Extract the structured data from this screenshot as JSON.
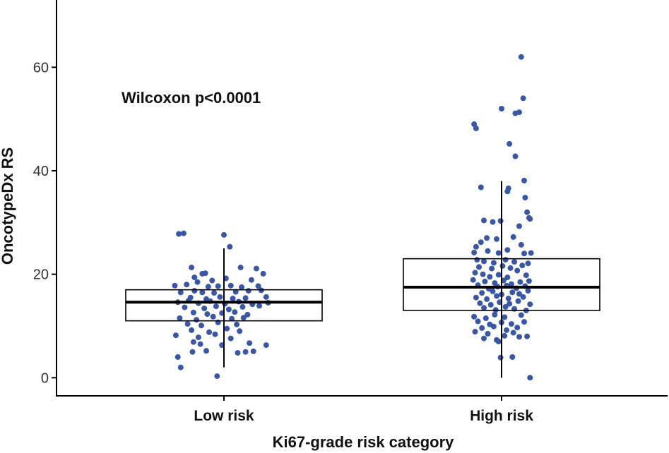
{
  "chart_data": {
    "type": "box",
    "title": "",
    "xlabel": "Ki67-grade risk category",
    "ylabel": "OncotypeDx RS",
    "ylim": [
      -3.5,
      73
    ],
    "yticks": [
      0,
      20,
      40,
      60
    ],
    "grid": false,
    "annotation": "Wilcoxon  p<0.0001",
    "point_color": "#3a57a6",
    "categories": [
      "Low risk",
      "High risk"
    ],
    "boxes": [
      {
        "name": "Low risk",
        "q1": 11,
        "median": 14.6,
        "q3": 17,
        "whisker_low": 2,
        "whisker_high": 25,
        "points": [
          [
            -0.46,
            27.8
          ],
          [
            -0.41,
            27.9
          ],
          [
            0.0,
            27.6
          ],
          [
            0.06,
            25.3
          ],
          [
            -0.22,
            20.1
          ],
          [
            -0.19,
            20.2
          ],
          [
            -0.33,
            21.3
          ],
          [
            -0.3,
            19.4
          ],
          [
            0.4,
            20.1
          ],
          [
            0.33,
            21.1
          ],
          [
            0.17,
            21.3
          ],
          [
            -0.38,
            18.0
          ],
          [
            -0.27,
            18.5
          ],
          [
            -0.12,
            18.8
          ],
          [
            0.02,
            19.2
          ],
          [
            0.28,
            18.9
          ],
          [
            -0.5,
            17.8
          ],
          [
            -0.16,
            17.6
          ],
          [
            -0.06,
            17.7
          ],
          [
            0.07,
            17.8
          ],
          [
            0.18,
            17.5
          ],
          [
            0.35,
            17.7
          ],
          [
            -0.44,
            16.5
          ],
          [
            -0.3,
            16.8
          ],
          [
            -0.22,
            16.5
          ],
          [
            -0.1,
            16.4
          ],
          [
            0.12,
            16.6
          ],
          [
            0.25,
            16.8
          ],
          [
            0.38,
            16.9
          ],
          [
            -0.34,
            15.5
          ],
          [
            -0.18,
            15.2
          ],
          [
            -0.04,
            15.6
          ],
          [
            0.09,
            15.3
          ],
          [
            0.22,
            15.4
          ],
          [
            0.43,
            15.6
          ],
          [
            -0.47,
            14.6
          ],
          [
            -0.36,
            14.9
          ],
          [
            -0.26,
            14.4
          ],
          [
            -0.14,
            14.8
          ],
          [
            0.01,
            14.3
          ],
          [
            0.15,
            14.7
          ],
          [
            0.29,
            14.2
          ],
          [
            0.45,
            14.5
          ],
          [
            -0.4,
            13.6
          ],
          [
            -0.2,
            13.4
          ],
          [
            -0.08,
            13.8
          ],
          [
            0.05,
            13.2
          ],
          [
            0.19,
            13.7
          ],
          [
            0.36,
            13.9
          ],
          [
            -0.31,
            12.6
          ],
          [
            -0.17,
            12.3
          ],
          [
            -0.02,
            12.5
          ],
          [
            0.11,
            12.7
          ],
          [
            0.24,
            12.2
          ],
          [
            -0.45,
            11.5
          ],
          [
            -0.28,
            11.2
          ],
          [
            -0.11,
            11.8
          ],
          [
            0.08,
            11.4
          ],
          [
            0.2,
            11.6
          ],
          [
            -0.37,
            10.4
          ],
          [
            -0.23,
            10.1
          ],
          [
            -0.06,
            10.7
          ],
          [
            0.13,
            10.3
          ],
          [
            -0.33,
            9.2
          ],
          [
            -0.15,
            8.8
          ],
          [
            0.03,
            9.5
          ],
          [
            0.16,
            9.0
          ],
          [
            -0.49,
            8.2
          ],
          [
            -0.26,
            7.8
          ],
          [
            -0.09,
            8.4
          ],
          [
            0.07,
            7.6
          ],
          [
            -0.31,
            6.9
          ],
          [
            -0.02,
            6.3
          ],
          [
            0.26,
            6.7
          ],
          [
            0.43,
            6.3
          ],
          [
            -0.18,
            5.2
          ],
          [
            0.22,
            5.0
          ],
          [
            0.14,
            4.8
          ],
          [
            -0.32,
            5.0
          ],
          [
            -0.47,
            4.0
          ],
          [
            -0.44,
            2.0
          ],
          [
            -0.07,
            0.3
          ],
          [
            -0.24,
            6.5
          ],
          [
            0.3,
            5.1
          ]
        ]
      },
      {
        "name": "High risk",
        "q1": 13,
        "median": 17.5,
        "q3": 23,
        "whisker_low": 0,
        "whisker_high": 38,
        "points": [
          [
            0.2,
            62.0
          ],
          [
            0.22,
            54.0
          ],
          [
            0.0,
            52.0
          ],
          [
            0.18,
            51.3
          ],
          [
            0.14,
            51.1
          ],
          [
            -0.28,
            49.0
          ],
          [
            -0.26,
            48.2
          ],
          [
            0.08,
            45.2
          ],
          [
            0.14,
            42.8
          ],
          [
            0.23,
            38.1
          ],
          [
            -0.21,
            36.8
          ],
          [
            0.07,
            36.6
          ],
          [
            0.24,
            34.8
          ],
          [
            0.26,
            32.0
          ],
          [
            0.28,
            30.9
          ],
          [
            -0.09,
            30.1
          ],
          [
            -0.18,
            30.4
          ],
          [
            -0.01,
            30.3
          ],
          [
            0.18,
            29.3
          ],
          [
            0.29,
            30.7
          ],
          [
            -0.15,
            27.0
          ],
          [
            0.12,
            27.2
          ],
          [
            -0.05,
            26.8
          ],
          [
            -0.26,
            25.3
          ],
          [
            0.2,
            25.7
          ],
          [
            -0.28,
            24.2
          ],
          [
            -0.14,
            24.5
          ],
          [
            -0.03,
            24.1
          ],
          [
            0.06,
            24.7
          ],
          [
            0.23,
            24.0
          ],
          [
            0.3,
            24.1
          ],
          [
            -0.25,
            22.8
          ],
          [
            -0.18,
            22.5
          ],
          [
            -0.08,
            22.2
          ],
          [
            0.04,
            22.8
          ],
          [
            0.13,
            22.4
          ],
          [
            0.27,
            22.1
          ],
          [
            -0.23,
            21.4
          ],
          [
            -0.1,
            21.1
          ],
          [
            0.01,
            21.6
          ],
          [
            0.09,
            21.2
          ],
          [
            0.21,
            21.7
          ],
          [
            -0.27,
            20.3
          ],
          [
            -0.19,
            20.0
          ],
          [
            -0.12,
            19.5
          ],
          [
            -0.03,
            19.9
          ],
          [
            0.06,
            19.4
          ],
          [
            0.16,
            20.7
          ],
          [
            0.25,
            19.8
          ],
          [
            -0.29,
            18.9
          ],
          [
            -0.17,
            18.6
          ],
          [
            -0.07,
            18.3
          ],
          [
            0.02,
            18.8
          ],
          [
            0.1,
            18.1
          ],
          [
            0.19,
            18.5
          ],
          [
            0.28,
            18.7
          ],
          [
            -0.24,
            17.9
          ],
          [
            -0.13,
            17.2
          ],
          [
            -0.04,
            17.6
          ],
          [
            0.05,
            17.8
          ],
          [
            0.15,
            17.3
          ],
          [
            0.24,
            17.7
          ],
          [
            -0.2,
            16.4
          ],
          [
            -0.09,
            16.7
          ],
          [
            0.0,
            16.1
          ],
          [
            0.11,
            16.5
          ],
          [
            0.18,
            16.2
          ],
          [
            0.27,
            16.8
          ],
          [
            -0.26,
            15.5
          ],
          [
            -0.15,
            15.2
          ],
          [
            -0.05,
            15.8
          ],
          [
            0.07,
            15.3
          ],
          [
            0.22,
            15.6
          ],
          [
            -0.22,
            14.4
          ],
          [
            -0.11,
            14.1
          ],
          [
            -0.02,
            14.6
          ],
          [
            0.08,
            14.3
          ],
          [
            0.17,
            14.8
          ],
          [
            0.29,
            14.2
          ],
          [
            -0.18,
            13.5
          ],
          [
            -0.06,
            13.1
          ],
          [
            0.04,
            13.7
          ],
          [
            0.13,
            13.3
          ],
          [
            0.25,
            13.0
          ],
          [
            -0.28,
            11.8
          ],
          [
            -0.16,
            11.5
          ],
          [
            -0.07,
            12.2
          ],
          [
            0.03,
            11.7
          ],
          [
            0.2,
            12.1
          ],
          [
            -0.24,
            10.9
          ],
          [
            -0.12,
            10.3
          ],
          [
            0.0,
            10.7
          ],
          [
            0.1,
            10.4
          ],
          [
            0.23,
            10.8
          ],
          [
            -0.2,
            9.6
          ],
          [
            -0.08,
            9.9
          ],
          [
            0.05,
            9.2
          ],
          [
            0.16,
            9.7
          ],
          [
            -0.27,
            8.9
          ],
          [
            -0.14,
            8.5
          ],
          [
            0.03,
            8.1
          ],
          [
            0.12,
            8.7
          ],
          [
            -0.18,
            7.6
          ],
          [
            -0.05,
            7.3
          ],
          [
            0.26,
            8.0
          ],
          [
            0.18,
            7.9
          ],
          [
            -0.03,
            7.0
          ],
          [
            0.11,
            4.0
          ],
          [
            -0.01,
            3.9
          ],
          [
            0.29,
            0.0
          ],
          [
            0.06,
            36.0
          ],
          [
            -0.21,
            26.2
          ]
        ]
      }
    ]
  }
}
